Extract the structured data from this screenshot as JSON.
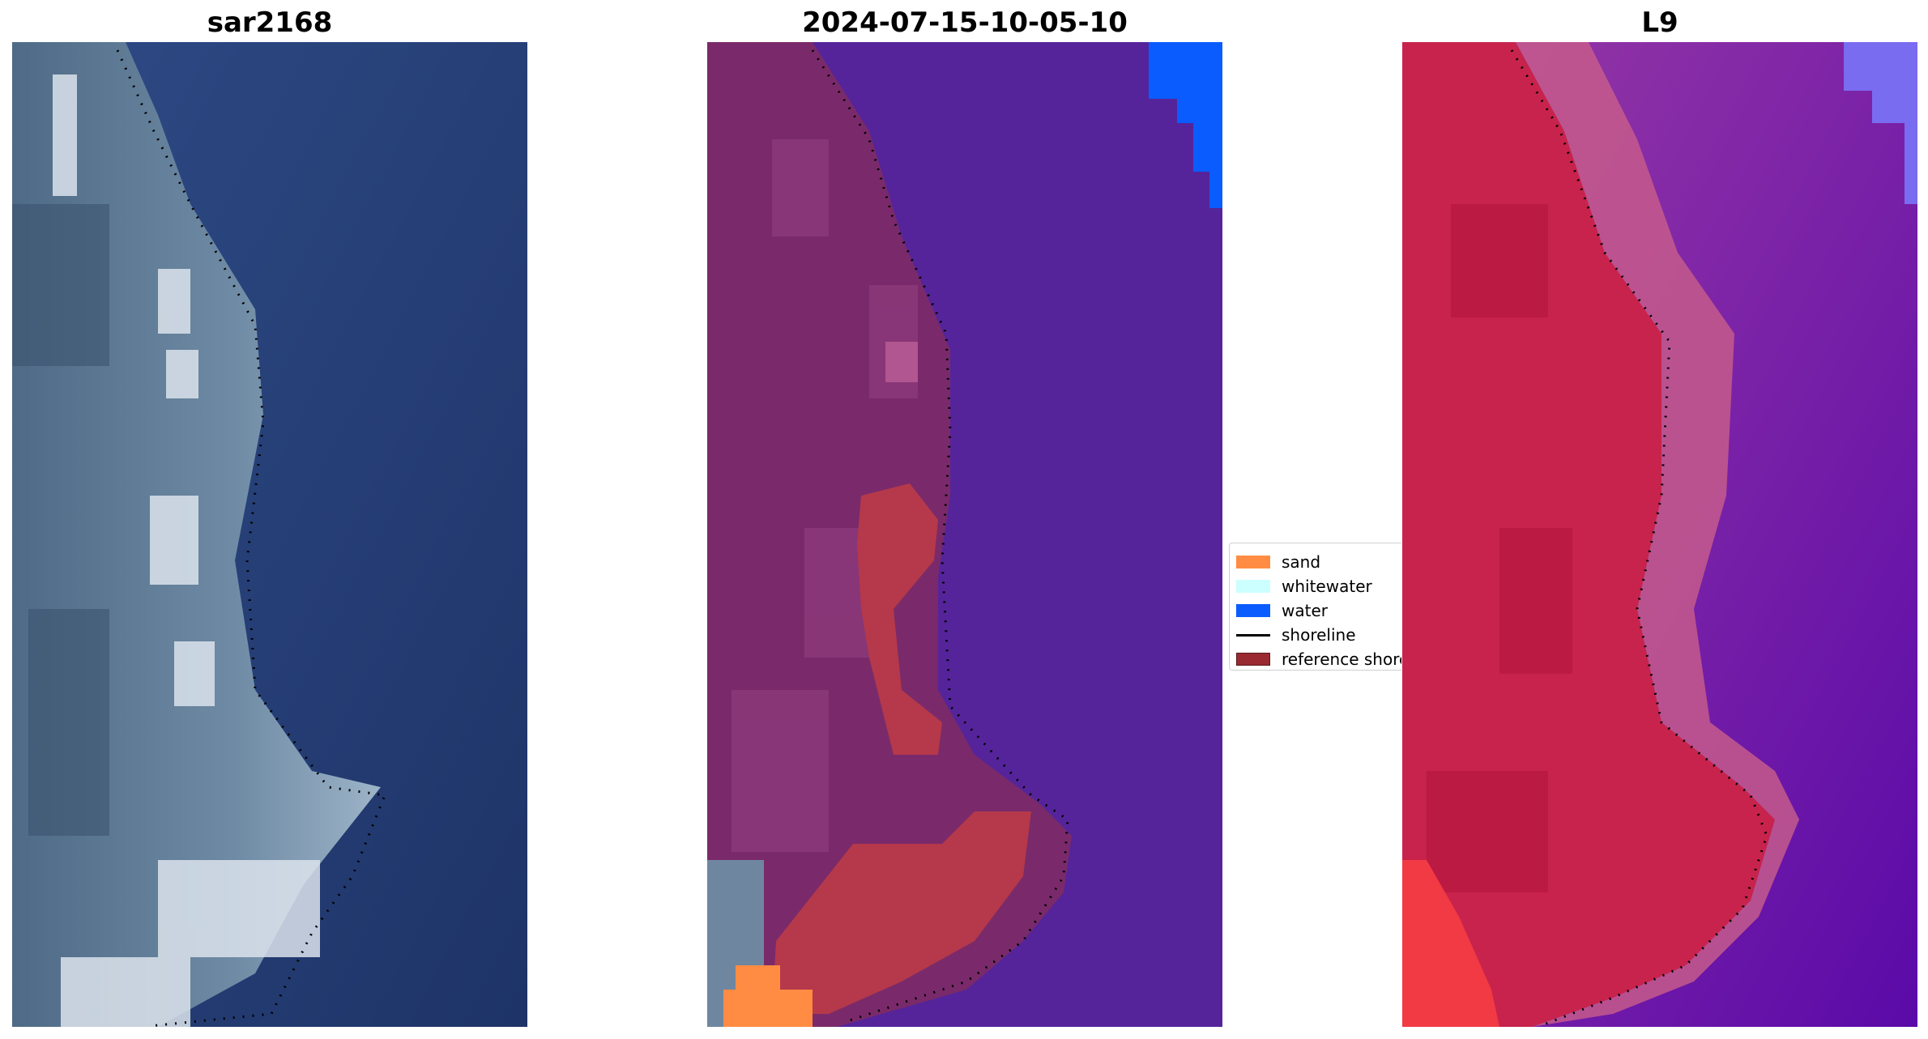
{
  "panels": [
    {
      "title": "sar2168",
      "image": "true-color satellite RGB of rocky coastline with dotted shoreline"
    },
    {
      "title": "2024-07-15-10-05-10",
      "image": "classified image: land (purple), sand (orange), water (blue), reference shoreline (dark red) with dotted shoreline"
    },
    {
      "title": "L9",
      "image": "false-color index image red (land) to purple (water) with dotted shoreline"
    }
  ],
  "legend": {
    "items": [
      {
        "label": "sand",
        "color": "#ff8c42",
        "kind": "patch"
      },
      {
        "label": "whitewater",
        "color": "#ccffff",
        "kind": "patch"
      },
      {
        "label": "water",
        "color": "#0a5cff",
        "kind": "patch"
      },
      {
        "label": "shoreline",
        "color": "#000000",
        "kind": "line"
      },
      {
        "label": "reference shoreline",
        "color": "#9a2a32",
        "kind": "patch"
      }
    ]
  },
  "colors": {
    "sea_rgb": "#22386c",
    "land_class": "#7a2a6a",
    "water_class": "#55249a",
    "index_land": "#c8234c",
    "index_water": "#6a14a8"
  }
}
